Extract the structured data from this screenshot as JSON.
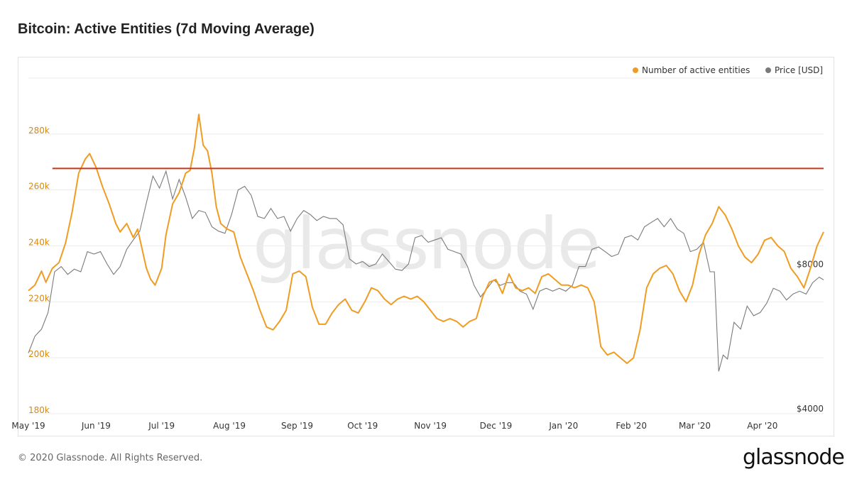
{
  "title": "Bitcoin: Active Entities (7d Moving Average)",
  "footer": "© 2020 Glassnode. All Rights Reserved.",
  "brand": "glassnode",
  "watermark": "glassnode",
  "colors": {
    "entities": "#f09c22",
    "price": "#7a7a7a",
    "reference_line": "#c8361a",
    "left_ticks": "#d8890b",
    "right_ticks": "#333333"
  },
  "chart_data": {
    "type": "line",
    "title": "Bitcoin: Active Entities (7d Moving Average)",
    "legend_placement": "top-right",
    "grid": true,
    "x_ticks": [
      "May '19",
      "Jun '19",
      "Jul '19",
      "Aug '19",
      "Sep '19",
      "Oct '19",
      "Nov '19",
      "Dec '19",
      "Jan '20",
      "Feb '20",
      "Mar '20",
      "Apr '20"
    ],
    "x_tick_dates": [
      "2019-05-01",
      "2019-06-01",
      "2019-07-01",
      "2019-08-01",
      "2019-09-01",
      "2019-10-01",
      "2019-11-01",
      "2019-12-01",
      "2020-01-01",
      "2020-02-01",
      "2020-03-01",
      "2020-04-01"
    ],
    "x_range": [
      "2019-05-01",
      "2020-04-29"
    ],
    "y_left": {
      "label": "",
      "range": [
        180000,
        300000
      ],
      "ticks": [
        180000,
        200000,
        220000,
        240000,
        260000,
        280000
      ],
      "tick_labels": [
        "180k",
        "200k",
        "220k",
        "240k",
        "260k",
        "280k"
      ]
    },
    "y_right": {
      "label": "",
      "scale": "log",
      "range": [
        4000,
        20000
      ],
      "ticks": [
        4000,
        8000
      ],
      "tick_labels": [
        "$4000",
        "$8000"
      ]
    },
    "reference_line": {
      "axis": "left",
      "value": 267700,
      "from": "2019-05-12",
      "to": "2020-04-29"
    },
    "series": [
      {
        "name": "Number of active entities",
        "axis": "left",
        "points": [
          [
            "2019-05-01",
            224000
          ],
          [
            "2019-05-04",
            226000
          ],
          [
            "2019-05-07",
            231000
          ],
          [
            "2019-05-09",
            227000
          ],
          [
            "2019-05-12",
            232000
          ],
          [
            "2019-05-15",
            234000
          ],
          [
            "2019-05-18",
            241000
          ],
          [
            "2019-05-21",
            252000
          ],
          [
            "2019-05-24",
            266000
          ],
          [
            "2019-05-27",
            271000
          ],
          [
            "2019-05-29",
            273000
          ],
          [
            "2019-06-01",
            268000
          ],
          [
            "2019-06-04",
            261000
          ],
          [
            "2019-06-07",
            255000
          ],
          [
            "2019-06-10",
            248000
          ],
          [
            "2019-06-12",
            245000
          ],
          [
            "2019-06-15",
            248000
          ],
          [
            "2019-06-18",
            243000
          ],
          [
            "2019-06-20",
            246000
          ],
          [
            "2019-06-22",
            239000
          ],
          [
            "2019-06-24",
            232000
          ],
          [
            "2019-06-26",
            228000
          ],
          [
            "2019-06-28",
            226000
          ],
          [
            "2019-07-01",
            232000
          ],
          [
            "2019-07-03",
            244000
          ],
          [
            "2019-07-06",
            255000
          ],
          [
            "2019-07-09",
            259000
          ],
          [
            "2019-07-12",
            266000
          ],
          [
            "2019-07-14",
            267000
          ],
          [
            "2019-07-16",
            275000
          ],
          [
            "2019-07-18",
            287000
          ],
          [
            "2019-07-20",
            276000
          ],
          [
            "2019-07-22",
            274000
          ],
          [
            "2019-07-24",
            266000
          ],
          [
            "2019-07-26",
            254000
          ],
          [
            "2019-07-28",
            248000
          ],
          [
            "2019-07-31",
            246000
          ],
          [
            "2019-08-03",
            245000
          ],
          [
            "2019-08-06",
            236000
          ],
          [
            "2019-08-09",
            230000
          ],
          [
            "2019-08-12",
            224000
          ],
          [
            "2019-08-15",
            217000
          ],
          [
            "2019-08-18",
            211000
          ],
          [
            "2019-08-21",
            210000
          ],
          [
            "2019-08-24",
            213000
          ],
          [
            "2019-08-27",
            217000
          ],
          [
            "2019-08-30",
            230000
          ],
          [
            "2019-09-02",
            231000
          ],
          [
            "2019-09-05",
            229000
          ],
          [
            "2019-09-08",
            218000
          ],
          [
            "2019-09-11",
            212000
          ],
          [
            "2019-09-14",
            212000
          ],
          [
            "2019-09-17",
            216000
          ],
          [
            "2019-09-20",
            219000
          ],
          [
            "2019-09-23",
            221000
          ],
          [
            "2019-09-26",
            217000
          ],
          [
            "2019-09-29",
            216000
          ],
          [
            "2019-10-02",
            220000
          ],
          [
            "2019-10-05",
            225000
          ],
          [
            "2019-10-08",
            224000
          ],
          [
            "2019-10-11",
            221000
          ],
          [
            "2019-10-14",
            219000
          ],
          [
            "2019-10-17",
            221000
          ],
          [
            "2019-10-20",
            222000
          ],
          [
            "2019-10-23",
            221000
          ],
          [
            "2019-10-26",
            222000
          ],
          [
            "2019-10-29",
            220000
          ],
          [
            "2019-11-01",
            217000
          ],
          [
            "2019-11-04",
            214000
          ],
          [
            "2019-11-07",
            213000
          ],
          [
            "2019-11-10",
            214000
          ],
          [
            "2019-11-13",
            213000
          ],
          [
            "2019-11-16",
            211000
          ],
          [
            "2019-11-19",
            213000
          ],
          [
            "2019-11-22",
            214000
          ],
          [
            "2019-11-25",
            222000
          ],
          [
            "2019-11-28",
            227000
          ],
          [
            "2019-12-01",
            228000
          ],
          [
            "2019-12-04",
            223000
          ],
          [
            "2019-12-07",
            230000
          ],
          [
            "2019-12-10",
            225000
          ],
          [
            "2019-12-13",
            224000
          ],
          [
            "2019-12-16",
            225000
          ],
          [
            "2019-12-19",
            223000
          ],
          [
            "2019-12-22",
            229000
          ],
          [
            "2019-12-25",
            230000
          ],
          [
            "2019-12-28",
            228000
          ],
          [
            "2019-12-31",
            226000
          ],
          [
            "2020-01-03",
            226000
          ],
          [
            "2020-01-06",
            225000
          ],
          [
            "2020-01-09",
            226000
          ],
          [
            "2020-01-12",
            225000
          ],
          [
            "2020-01-15",
            220000
          ],
          [
            "2020-01-18",
            204000
          ],
          [
            "2020-01-21",
            201000
          ],
          [
            "2020-01-24",
            202000
          ],
          [
            "2020-01-27",
            200000
          ],
          [
            "2020-01-30",
            198000
          ],
          [
            "2020-02-02",
            200000
          ],
          [
            "2020-02-05",
            210000
          ],
          [
            "2020-02-08",
            225000
          ],
          [
            "2020-02-11",
            230000
          ],
          [
            "2020-02-14",
            232000
          ],
          [
            "2020-02-17",
            233000
          ],
          [
            "2020-02-20",
            230000
          ],
          [
            "2020-02-23",
            224000
          ],
          [
            "2020-02-26",
            220000
          ],
          [
            "2020-02-29",
            226000
          ],
          [
            "2020-03-03",
            237000
          ],
          [
            "2020-03-06",
            244000
          ],
          [
            "2020-03-09",
            248000
          ],
          [
            "2020-03-12",
            254000
          ],
          [
            "2020-03-15",
            251000
          ],
          [
            "2020-03-18",
            246000
          ],
          [
            "2020-03-21",
            240000
          ],
          [
            "2020-03-24",
            236000
          ],
          [
            "2020-03-27",
            234000
          ],
          [
            "2020-03-30",
            237000
          ],
          [
            "2020-04-02",
            242000
          ],
          [
            "2020-04-05",
            243000
          ],
          [
            "2020-04-08",
            240000
          ],
          [
            "2020-04-11",
            238000
          ],
          [
            "2020-04-14",
            232000
          ],
          [
            "2020-04-17",
            229000
          ],
          [
            "2020-04-20",
            225000
          ],
          [
            "2020-04-23",
            232000
          ],
          [
            "2020-04-26",
            240000
          ],
          [
            "2020-04-29",
            245000
          ]
        ]
      },
      {
        "name": "Price [USD]",
        "axis": "right",
        "points": [
          [
            "2019-05-01",
            5350
          ],
          [
            "2019-05-04",
            5800
          ],
          [
            "2019-05-07",
            6000
          ],
          [
            "2019-05-10",
            6500
          ],
          [
            "2019-05-13",
            7900
          ],
          [
            "2019-05-16",
            8100
          ],
          [
            "2019-05-19",
            7800
          ],
          [
            "2019-05-22",
            8000
          ],
          [
            "2019-05-25",
            7900
          ],
          [
            "2019-05-28",
            8700
          ],
          [
            "2019-05-31",
            8600
          ],
          [
            "2019-06-03",
            8700
          ],
          [
            "2019-06-06",
            8200
          ],
          [
            "2019-06-09",
            7800
          ],
          [
            "2019-06-12",
            8100
          ],
          [
            "2019-06-15",
            8800
          ],
          [
            "2019-06-18",
            9200
          ],
          [
            "2019-06-21",
            9600
          ],
          [
            "2019-06-24",
            11000
          ],
          [
            "2019-06-27",
            12500
          ],
          [
            "2019-06-30",
            11800
          ],
          [
            "2019-07-03",
            12800
          ],
          [
            "2019-07-06",
            11200
          ],
          [
            "2019-07-09",
            12300
          ],
          [
            "2019-07-12",
            11300
          ],
          [
            "2019-07-15",
            10200
          ],
          [
            "2019-07-18",
            10600
          ],
          [
            "2019-07-21",
            10500
          ],
          [
            "2019-07-24",
            9800
          ],
          [
            "2019-07-27",
            9600
          ],
          [
            "2019-07-30",
            9500
          ],
          [
            "2019-08-02",
            10400
          ],
          [
            "2019-08-05",
            11700
          ],
          [
            "2019-08-08",
            11900
          ],
          [
            "2019-08-11",
            11400
          ],
          [
            "2019-08-14",
            10300
          ],
          [
            "2019-08-17",
            10200
          ],
          [
            "2019-08-20",
            10700
          ],
          [
            "2019-08-23",
            10200
          ],
          [
            "2019-08-26",
            10300
          ],
          [
            "2019-08-29",
            9600
          ],
          [
            "2019-09-01",
            10200
          ],
          [
            "2019-09-04",
            10600
          ],
          [
            "2019-09-07",
            10400
          ],
          [
            "2019-09-10",
            10100
          ],
          [
            "2019-09-13",
            10300
          ],
          [
            "2019-09-16",
            10200
          ],
          [
            "2019-09-19",
            10200
          ],
          [
            "2019-09-22",
            9900
          ],
          [
            "2019-09-25",
            8400
          ],
          [
            "2019-09-28",
            8200
          ],
          [
            "2019-10-01",
            8300
          ],
          [
            "2019-10-04",
            8100
          ],
          [
            "2019-10-07",
            8200
          ],
          [
            "2019-10-10",
            8600
          ],
          [
            "2019-10-13",
            8300
          ],
          [
            "2019-10-16",
            8000
          ],
          [
            "2019-10-19",
            7950
          ],
          [
            "2019-10-22",
            8200
          ],
          [
            "2019-10-25",
            9300
          ],
          [
            "2019-10-28",
            9400
          ],
          [
            "2019-10-31",
            9100
          ],
          [
            "2019-11-03",
            9200
          ],
          [
            "2019-11-06",
            9300
          ],
          [
            "2019-11-09",
            8800
          ],
          [
            "2019-11-12",
            8700
          ],
          [
            "2019-11-15",
            8600
          ],
          [
            "2019-11-18",
            8100
          ],
          [
            "2019-11-21",
            7400
          ],
          [
            "2019-11-24",
            7000
          ],
          [
            "2019-11-27",
            7300
          ],
          [
            "2019-11-30",
            7600
          ],
          [
            "2019-12-03",
            7400
          ],
          [
            "2019-12-06",
            7500
          ],
          [
            "2019-12-09",
            7500
          ],
          [
            "2019-12-12",
            7200
          ],
          [
            "2019-12-15",
            7100
          ],
          [
            "2019-12-18",
            6600
          ],
          [
            "2019-12-21",
            7200
          ],
          [
            "2019-12-24",
            7300
          ],
          [
            "2019-12-27",
            7200
          ],
          [
            "2019-12-30",
            7300
          ],
          [
            "2020-01-02",
            7200
          ],
          [
            "2020-01-05",
            7400
          ],
          [
            "2020-01-08",
            8100
          ],
          [
            "2020-01-11",
            8100
          ],
          [
            "2020-01-14",
            8800
          ],
          [
            "2020-01-17",
            8900
          ],
          [
            "2020-01-20",
            8700
          ],
          [
            "2020-01-23",
            8500
          ],
          [
            "2020-01-26",
            8600
          ],
          [
            "2020-01-29",
            9300
          ],
          [
            "2020-02-01",
            9400
          ],
          [
            "2020-02-04",
            9200
          ],
          [
            "2020-02-07",
            9800
          ],
          [
            "2020-02-10",
            10000
          ],
          [
            "2020-02-13",
            10200
          ],
          [
            "2020-02-16",
            9800
          ],
          [
            "2020-02-19",
            10200
          ],
          [
            "2020-02-22",
            9700
          ],
          [
            "2020-02-25",
            9500
          ],
          [
            "2020-02-28",
            8700
          ],
          [
            "2020-03-02",
            8800
          ],
          [
            "2020-03-05",
            9100
          ],
          [
            "2020-03-08",
            7900
          ],
          [
            "2020-03-10",
            7900
          ],
          [
            "2020-03-12",
            4900
          ],
          [
            "2020-03-14",
            5300
          ],
          [
            "2020-03-16",
            5200
          ],
          [
            "2020-03-19",
            6200
          ],
          [
            "2020-03-22",
            6000
          ],
          [
            "2020-03-25",
            6700
          ],
          [
            "2020-03-28",
            6400
          ],
          [
            "2020-03-31",
            6500
          ],
          [
            "2020-04-03",
            6800
          ],
          [
            "2020-04-06",
            7300
          ],
          [
            "2020-04-09",
            7200
          ],
          [
            "2020-04-12",
            6900
          ],
          [
            "2020-04-15",
            7100
          ],
          [
            "2020-04-18",
            7200
          ],
          [
            "2020-04-21",
            7100
          ],
          [
            "2020-04-24",
            7500
          ],
          [
            "2020-04-27",
            7700
          ],
          [
            "2020-04-29",
            7600
          ]
        ]
      }
    ]
  }
}
